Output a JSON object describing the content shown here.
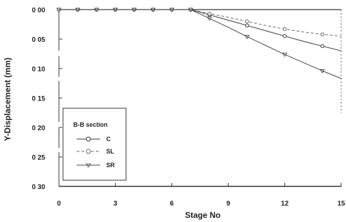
{
  "chart_data": {
    "type": "line",
    "xlabel": "Stage No",
    "ylabel": "Y-Displacement (mm)",
    "xlim": [
      0,
      15
    ],
    "ylim": [
      0.3,
      0.0
    ],
    "y_axis_inverted": true,
    "x_ticks": [
      0,
      3,
      6,
      9,
      12,
      15
    ],
    "y_ticks": [
      0.0,
      0.05,
      0.1,
      0.15,
      0.2,
      0.25,
      0.3
    ],
    "x_tick_labels": [
      "0",
      "3",
      "6",
      "9",
      "12",
      "15"
    ],
    "y_tick_labels": [
      "0 00",
      "0 05",
      "0 10",
      "0 15",
      "0 20",
      "0 25",
      "0 30"
    ],
    "grid": false,
    "legend": {
      "title": "B-B section",
      "placement": "lower-left"
    },
    "series": [
      {
        "name": "C",
        "marker": "circle",
        "dash": "none",
        "x": [
          0,
          1,
          2,
          3,
          4,
          5,
          6,
          7,
          8,
          9,
          10,
          11,
          12,
          13,
          14,
          15
        ],
        "y": [
          0.0,
          0.0,
          0.0,
          0.0,
          0.0,
          0.0,
          0.0,
          0.0,
          0.009,
          0.018,
          0.027,
          0.036,
          0.045,
          0.054,
          0.062,
          0.07
        ]
      },
      {
        "name": "SL",
        "marker": "circle-open",
        "dash": "4,3",
        "x": [
          0,
          1,
          2,
          3,
          4,
          5,
          6,
          7,
          8,
          9,
          10,
          11,
          12,
          13,
          14,
          15
        ],
        "y": [
          0.0,
          0.0,
          0.0,
          0.0,
          0.0,
          0.0,
          0.0,
          0.0,
          0.007,
          0.013,
          0.02,
          0.027,
          0.033,
          0.038,
          0.042,
          0.045
        ]
      },
      {
        "name": "SR",
        "marker": "triangle",
        "dash": "none",
        "x": [
          0,
          1,
          2,
          3,
          4,
          5,
          6,
          7,
          8,
          9,
          10,
          11,
          12,
          13,
          14,
          15
        ],
        "y": [
          0.0,
          0.0,
          0.0,
          0.0,
          0.0,
          0.0,
          0.0,
          0.0,
          0.015,
          0.03,
          0.046,
          0.061,
          0.076,
          0.09,
          0.104,
          0.117
        ]
      }
    ]
  },
  "colors": {
    "background": "#ffffff",
    "axis": "#333333",
    "series_c": "#333333",
    "series_sl": "#666666",
    "series_sr": "#444444"
  }
}
